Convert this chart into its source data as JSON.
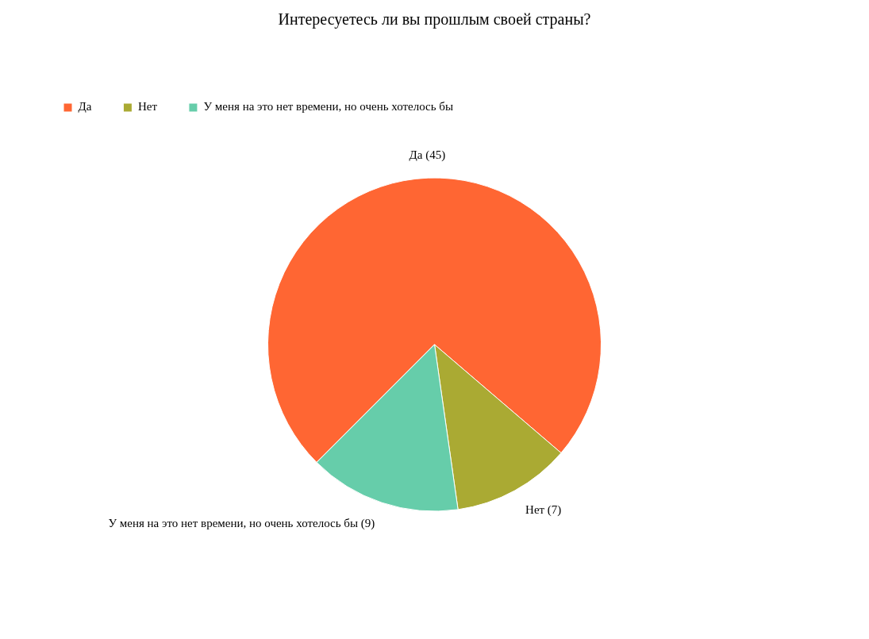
{
  "chart_data": {
    "type": "pie",
    "title": "Интересуетесь ли вы прошлым своей страны?",
    "categories": [
      "Да",
      "Нет",
      "У меня на это нет времени, но очень хотелось бы"
    ],
    "values": [
      45,
      7,
      9
    ],
    "colors": [
      "#ff6633",
      "#aaaa33",
      "#66cdaa"
    ],
    "value_labels": [
      "Да (45)",
      "Нет (7)",
      "У меня на это нет времени, но очень хотелось бы (9)"
    ],
    "legend": "top left"
  }
}
